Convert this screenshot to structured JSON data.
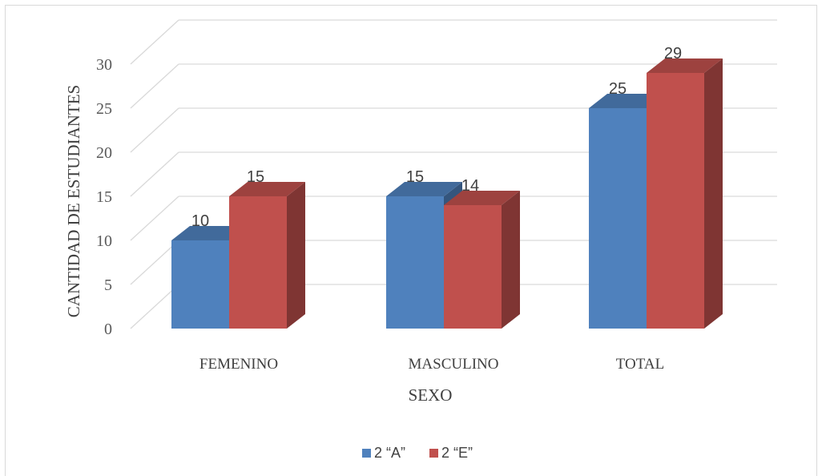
{
  "chart_data": {
    "type": "bar",
    "style": "3d-clustered-column",
    "categories": [
      "FEMENINO",
      "MASCULINO",
      "TOTAL"
    ],
    "series": [
      {
        "name": "2 “A”",
        "values": [
          10,
          15,
          25
        ],
        "color": "#4F81BD"
      },
      {
        "name": "2 “E”",
        "values": [
          15,
          14,
          29
        ],
        "color": "#C0504D"
      }
    ],
    "title": "",
    "xlabel": "SEXO",
    "ylabel": "CANTIDAD DE ESTUDIANTES",
    "ylim": [
      0,
      30
    ],
    "yticks": [
      0,
      5,
      10,
      15,
      20,
      25,
      30
    ],
    "grid": true,
    "data_labels": true,
    "legend_position": "bottom"
  }
}
